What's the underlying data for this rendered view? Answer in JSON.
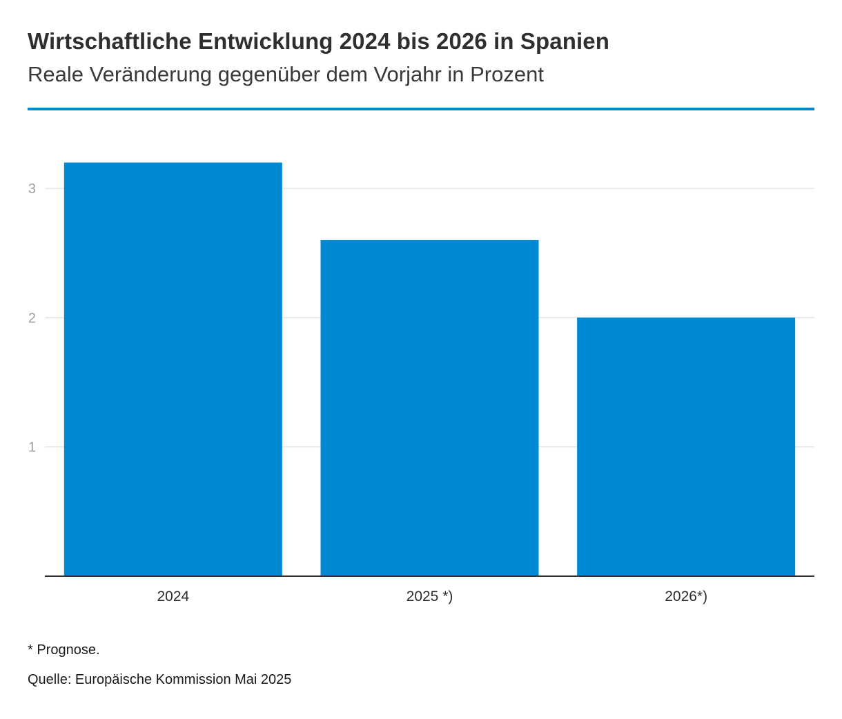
{
  "chart_data": {
    "type": "bar",
    "title": "Wirtschaftliche Entwicklung 2024 bis 2026 in Spanien",
    "subtitle": "Reale Veränderung gegenüber dem Vorjahr in Prozent",
    "categories": [
      "2024",
      "2025 *)",
      "2026*)"
    ],
    "values": [
      3.2,
      2.6,
      2.0
    ],
    "xlabel": "",
    "ylabel": "",
    "ylim": [
      0,
      3.2
    ],
    "yticks": [
      1,
      2,
      3
    ],
    "grid": true,
    "legend": "none",
    "bar_color": "#0089d3",
    "note": "* Prognose.",
    "source": "Quelle: Europäische Kommission Mai 2025"
  }
}
